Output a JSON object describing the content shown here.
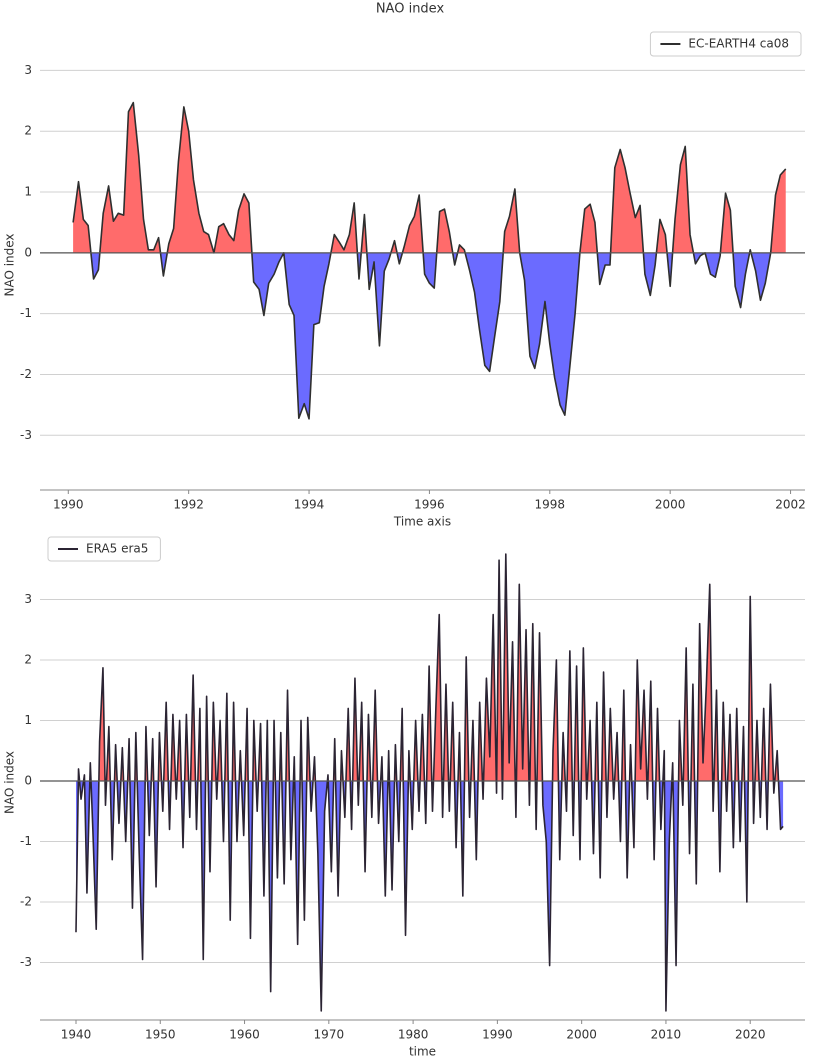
{
  "chart_data": [
    {
      "type": "area",
      "title": "NAO index",
      "xlabel": "Time axis",
      "ylabel": "NAO index",
      "xlim": [
        1989.53,
        2002.24
      ],
      "ylim": [
        -3.9,
        3.5
      ],
      "xticks": [
        1990,
        1992,
        1994,
        1996,
        1998,
        2000,
        2002
      ],
      "yticks": [
        -3,
        -2,
        -1,
        0,
        1,
        2,
        3
      ],
      "grid": true,
      "hline": 0,
      "legend": "upper right",
      "positive_color": "#ff6b6b",
      "negative_color": "#6b6bff",
      "x": [
        1990.08,
        1990.17,
        1990.25,
        1990.33,
        1990.42,
        1990.5,
        1990.58,
        1990.67,
        1990.75,
        1990.83,
        1990.92,
        1991.0,
        1991.08,
        1991.17,
        1991.25,
        1991.33,
        1991.42,
        1991.5,
        1991.58,
        1991.67,
        1991.75,
        1991.83,
        1991.92,
        1992.0,
        1992.08,
        1992.17,
        1992.25,
        1992.33,
        1992.42,
        1992.5,
        1992.58,
        1992.67,
        1992.75,
        1992.83,
        1992.92,
        1993.0,
        1993.08,
        1993.17,
        1993.25,
        1993.33,
        1993.42,
        1993.5,
        1993.58,
        1993.67,
        1993.75,
        1993.83,
        1993.92,
        1994.0,
        1994.08,
        1994.17,
        1994.25,
        1994.33,
        1994.42,
        1994.5,
        1994.58,
        1994.67,
        1994.75,
        1994.83,
        1994.92,
        1995.0,
        1995.08,
        1995.17,
        1995.25,
        1995.33,
        1995.42,
        1995.5,
        1995.58,
        1995.67,
        1995.75,
        1995.83,
        1995.92,
        1996.0,
        1996.08,
        1996.17,
        1996.25,
        1996.33,
        1996.42,
        1996.5,
        1996.58,
        1996.67,
        1996.75,
        1996.83,
        1996.92,
        1997.0,
        1997.08,
        1997.17,
        1997.25,
        1997.33,
        1997.42,
        1997.5,
        1997.58,
        1997.67,
        1997.75,
        1997.83,
        1997.92,
        1998.0,
        1998.08,
        1998.17,
        1998.25,
        1998.33,
        1998.42,
        1998.5,
        1998.58,
        1998.67,
        1998.75,
        1998.83,
        1998.92,
        1999.0,
        1999.08,
        1999.17,
        1999.25,
        1999.33,
        1999.42,
        1999.5,
        1999.58,
        1999.67,
        1999.75,
        1999.83,
        1999.92,
        2000.0,
        2000.08,
        2000.17,
        2000.25,
        2000.33,
        2000.42,
        2000.5,
        2000.58,
        2000.67,
        2000.75,
        2000.83,
        2000.92,
        2001.0,
        2001.08,
        2001.17,
        2001.25,
        2001.33,
        2001.42,
        2001.5,
        2001.58,
        2001.67,
        2001.75,
        2001.83,
        2001.92
      ],
      "series": [
        {
          "name": "EC-EARTH4 ca08",
          "color": "#2f2f2f",
          "values": [
            0.5,
            1.17,
            0.55,
            0.45,
            -0.43,
            -0.28,
            0.65,
            1.1,
            0.52,
            0.65,
            0.62,
            2.32,
            2.47,
            1.6,
            0.55,
            0.05,
            0.05,
            0.25,
            -0.38,
            0.15,
            0.4,
            1.5,
            2.4,
            2.0,
            1.2,
            0.65,
            0.35,
            0.3,
            0.0,
            0.43,
            0.48,
            0.3,
            0.2,
            0.7,
            0.97,
            0.82,
            -0.48,
            -0.6,
            -1.03,
            -0.5,
            -0.35,
            -0.15,
            0.0,
            -0.85,
            -1.03,
            -2.72,
            -2.48,
            -2.73,
            -1.18,
            -1.15,
            -0.55,
            -0.18,
            0.3,
            0.18,
            0.05,
            0.3,
            0.82,
            -0.43,
            0.63,
            -0.6,
            -0.15,
            -1.53,
            -0.3,
            -0.1,
            0.2,
            -0.18,
            0.1,
            0.45,
            0.6,
            0.95,
            -0.35,
            -0.5,
            -0.58,
            0.68,
            0.72,
            0.35,
            -0.2,
            0.13,
            0.05,
            -0.3,
            -0.65,
            -1.25,
            -1.85,
            -1.95,
            -1.4,
            -0.8,
            0.35,
            0.6,
            1.05,
            0.0,
            -0.45,
            -1.7,
            -1.9,
            -1.5,
            -0.8,
            -1.5,
            -2.05,
            -2.5,
            -2.67,
            -1.9,
            -1.0,
            0.0,
            0.72,
            0.8,
            0.5,
            -0.52,
            -0.2,
            -0.2,
            1.4,
            1.7,
            1.4,
            1.0,
            0.58,
            0.78,
            -0.35,
            -0.7,
            -0.2,
            0.55,
            0.3,
            -0.55,
            0.55,
            1.45,
            1.75,
            0.3,
            -0.18,
            -0.05,
            0.0,
            -0.35,
            -0.4,
            -0.05,
            0.98,
            0.7,
            -0.55,
            -0.9,
            -0.35,
            0.05,
            -0.3,
            -0.78,
            -0.5,
            0.0,
            0.95,
            1.28,
            1.38
          ]
        }
      ]
    },
    {
      "type": "area",
      "xlabel": "time",
      "ylabel": "NAO index",
      "xlim": [
        1935.73,
        2026.5
      ],
      "ylim": [
        -3.95,
        3.9
      ],
      "xticks": [
        1940,
        1950,
        1960,
        1970,
        1980,
        1990,
        2000,
        2010,
        2020
      ],
      "yticks": [
        -3,
        -2,
        -1,
        0,
        1,
        2,
        3
      ],
      "grid": true,
      "hline": 0,
      "legend": "upper left",
      "positive_color": "#ff6b6b",
      "negative_color": "#6b6bff",
      "x": [
        1940.0,
        1940.3,
        1940.6,
        1941.0,
        1941.3,
        1941.7,
        1942.0,
        1942.4,
        1942.8,
        1943.2,
        1943.5,
        1943.9,
        1944.3,
        1944.7,
        1945.1,
        1945.5,
        1945.9,
        1946.3,
        1946.7,
        1947.1,
        1947.5,
        1947.9,
        1948.3,
        1948.7,
        1949.1,
        1949.5,
        1949.9,
        1950.3,
        1950.7,
        1951.1,
        1951.5,
        1951.9,
        1952.3,
        1952.7,
        1953.1,
        1953.5,
        1953.9,
        1954.3,
        1954.7,
        1955.1,
        1955.5,
        1955.9,
        1956.3,
        1956.7,
        1957.1,
        1957.5,
        1957.9,
        1958.3,
        1958.7,
        1959.1,
        1959.5,
        1959.9,
        1960.3,
        1960.7,
        1961.1,
        1961.5,
        1961.9,
        1962.3,
        1962.7,
        1963.1,
        1963.5,
        1963.9,
        1964.3,
        1964.7,
        1965.1,
        1965.5,
        1965.9,
        1966.3,
        1966.7,
        1967.1,
        1967.5,
        1967.9,
        1968.3,
        1968.7,
        1969.1,
        1969.5,
        1969.9,
        1970.3,
        1970.7,
        1971.1,
        1971.5,
        1971.9,
        1972.3,
        1972.7,
        1973.1,
        1973.5,
        1973.9,
        1974.3,
        1974.7,
        1975.1,
        1975.5,
        1975.9,
        1976.3,
        1976.7,
        1977.1,
        1977.5,
        1977.9,
        1978.3,
        1978.7,
        1979.1,
        1979.5,
        1979.9,
        1980.3,
        1980.7,
        1981.1,
        1981.5,
        1981.9,
        1982.3,
        1982.7,
        1983.1,
        1983.5,
        1983.9,
        1984.3,
        1984.7,
        1985.1,
        1985.5,
        1985.9,
        1986.3,
        1986.7,
        1987.1,
        1987.5,
        1987.9,
        1988.3,
        1988.7,
        1989.1,
        1989.5,
        1989.9,
        1990.2,
        1990.6,
        1991.0,
        1991.4,
        1991.8,
        1992.2,
        1992.6,
        1993.0,
        1993.4,
        1993.8,
        1994.2,
        1994.6,
        1995.0,
        1995.4,
        1995.8,
        1996.2,
        1996.6,
        1997.0,
        1997.4,
        1997.8,
        1998.2,
        1998.6,
        1999.0,
        1999.4,
        1999.8,
        2000.2,
        2000.6,
        2001.0,
        2001.4,
        2001.8,
        2002.2,
        2002.6,
        2003.0,
        2003.4,
        2003.8,
        2004.2,
        2004.6,
        2005.0,
        2005.4,
        2005.8,
        2006.2,
        2006.6,
        2007.0,
        2007.4,
        2007.8,
        2008.2,
        2008.6,
        2009.0,
        2009.4,
        2009.8,
        2010.0,
        2010.4,
        2010.8,
        2011.2,
        2011.6,
        2012.0,
        2012.4,
        2012.8,
        2013.2,
        2013.6,
        2014.0,
        2014.4,
        2014.8,
        2015.2,
        2015.6,
        2016.0,
        2016.4,
        2016.8,
        2017.2,
        2017.6,
        2018.0,
        2018.4,
        2018.8,
        2019.2,
        2019.6,
        2020.0,
        2020.4,
        2020.8,
        2021.2,
        2021.6,
        2022.0,
        2022.4,
        2022.8,
        2023.2,
        2023.6,
        2023.9
      ],
      "series": [
        {
          "name": "ERA5 era5",
          "color": "#2b2433",
          "values": [
            -2.5,
            0.2,
            -0.3,
            0.1,
            -1.85,
            0.3,
            -0.8,
            -2.45,
            0.65,
            1.87,
            -0.4,
            0.9,
            -1.3,
            0.6,
            -0.7,
            0.55,
            -1.0,
            0.7,
            -2.1,
            0.8,
            -1.2,
            -2.95,
            0.9,
            -0.9,
            0.7,
            -1.75,
            0.8,
            -0.5,
            1.3,
            -0.8,
            1.1,
            -0.3,
            1.0,
            -1.1,
            1.1,
            -0.6,
            1.75,
            -0.8,
            1.2,
            -2.95,
            1.4,
            -1.5,
            1.3,
            -0.3,
            1.0,
            -1.0,
            1.45,
            -2.3,
            1.3,
            -1.0,
            0.5,
            -0.9,
            1.2,
            -2.6,
            1.0,
            -0.5,
            0.95,
            -1.9,
            1.0,
            -3.48,
            1.0,
            -1.6,
            0.8,
            -1.7,
            1.5,
            -1.3,
            0.4,
            -2.7,
            1.0,
            -2.3,
            1.05,
            -0.5,
            0.4,
            -1.2,
            -3.8,
            -0.5,
            0.1,
            -1.5,
            0.7,
            -1.9,
            0.5,
            -0.6,
            1.2,
            -0.8,
            1.7,
            -0.4,
            1.3,
            -1.5,
            1.1,
            -0.6,
            1.5,
            -0.7,
            0.4,
            -1.9,
            0.5,
            -1.8,
            0.6,
            -1.0,
            1.2,
            -2.55,
            0.5,
            -0.8,
            1.0,
            -0.5,
            1.1,
            -0.7,
            1.9,
            -0.5,
            1.2,
            2.75,
            -0.6,
            1.6,
            -0.5,
            1.3,
            -1.1,
            0.8,
            -1.9,
            2.05,
            -0.6,
            1.0,
            -1.3,
            1.3,
            -0.3,
            1.7,
            0.4,
            2.75,
            -0.2,
            3.65,
            -0.3,
            3.75,
            0.3,
            2.3,
            -0.6,
            3.25,
            0.2,
            2.5,
            -0.4,
            2.6,
            -0.8,
            2.45,
            -0.4,
            -1.0,
            -3.05,
            0.5,
            2.0,
            -1.3,
            0.8,
            -0.5,
            2.15,
            -0.9,
            1.9,
            -1.3,
            2.2,
            -0.3,
            1.0,
            -1.2,
            1.3,
            -1.6,
            1.8,
            -0.6,
            1.2,
            -0.3,
            0.8,
            -1.0,
            1.5,
            -1.6,
            0.6,
            -1.1,
            2.0,
            0.2,
            1.5,
            -0.3,
            1.65,
            -1.3,
            1.2,
            -0.8,
            0.5,
            -3.8,
            -1.0,
            0.3,
            -3.05,
            1.0,
            -0.4,
            2.2,
            -1.2,
            1.6,
            -1.7,
            2.6,
            0.3,
            1.6,
            3.25,
            -0.5,
            1.5,
            -1.5,
            1.3,
            -0.5,
            1.1,
            -1.1,
            1.2,
            -1.0,
            0.9,
            -2.0,
            3.05,
            -0.7,
            1.0,
            -0.6,
            1.2,
            -0.8,
            1.6,
            -0.2,
            0.5,
            -0.8,
            -0.75
          ]
        }
      ]
    }
  ]
}
